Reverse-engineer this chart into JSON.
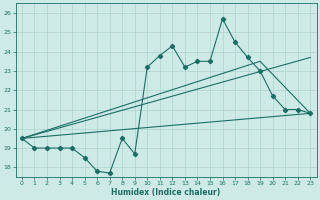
{
  "xlabel": "Humidex (Indice chaleur)",
  "x": [
    0,
    1,
    2,
    3,
    4,
    5,
    6,
    7,
    8,
    9,
    10,
    11,
    12,
    13,
    14,
    15,
    16,
    17,
    18,
    19,
    20,
    21,
    22,
    23
  ],
  "y_main": [
    19.5,
    19.0,
    19.0,
    19.0,
    19.0,
    18.5,
    17.8,
    17.7,
    19.5,
    18.7,
    23.2,
    23.8,
    24.3,
    23.2,
    23.5,
    23.5,
    25.7,
    24.5,
    23.7,
    23.0,
    21.7,
    21.0,
    21.0,
    20.8
  ],
  "line1_x": [
    0,
    23
  ],
  "line1_y": [
    19.5,
    23.7
  ],
  "line2_x": [
    0,
    19,
    23
  ],
  "line2_y": [
    19.5,
    23.5,
    20.8
  ],
  "line3_x": [
    0,
    23
  ],
  "line3_y": [
    19.5,
    20.8
  ],
  "color": "#1c6e64",
  "bg_color": "#ceeae6",
  "grid_color": "#aed4d0",
  "ylim": [
    17.5,
    26.5
  ],
  "xlim": [
    -0.5,
    23.5
  ],
  "yticks": [
    18,
    19,
    20,
    21,
    22,
    23,
    24,
    25,
    26
  ],
  "xticks": [
    0,
    1,
    2,
    3,
    4,
    5,
    6,
    7,
    8,
    9,
    10,
    11,
    12,
    13,
    14,
    15,
    16,
    17,
    18,
    19,
    20,
    21,
    22,
    23
  ],
  "marker": "D",
  "markersize": 2.2,
  "linewidth": 0.8
}
